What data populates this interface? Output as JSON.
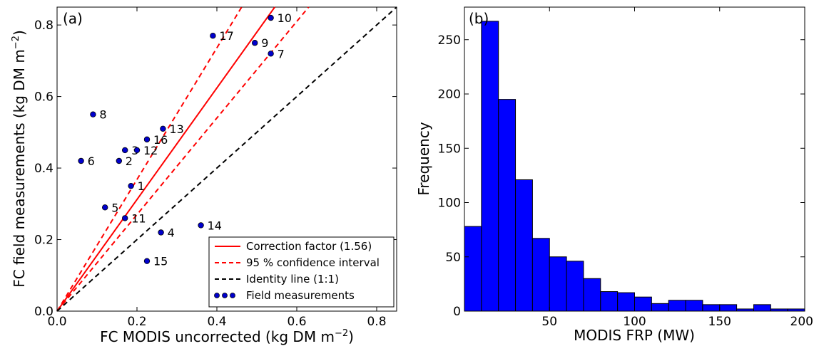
{
  "chart_data": [
    {
      "type": "scatter",
      "panel_label": "(a)",
      "xlabel": "FC MODIS uncorrected (kg DM m",
      "ylabel": "FC field measurements (kg DM m",
      "axis_unit_exponent": "−2",
      "axis_unit_close": ")",
      "xlim": [
        0,
        0.85
      ],
      "ylim": [
        0,
        0.85
      ],
      "xticks": [
        "0.0",
        "0.2",
        "0.4",
        "0.6",
        "0.8"
      ],
      "yticks": [
        "0.0",
        "0.2",
        "0.4",
        "0.6",
        "0.8"
      ],
      "xtick_values": [
        0,
        0.2,
        0.4,
        0.6,
        0.8
      ],
      "ytick_values": [
        0,
        0.2,
        0.4,
        0.6,
        0.8
      ],
      "grid": false,
      "legend_position": "lower-right",
      "points": [
        {
          "label": "1",
          "x": 0.185,
          "y": 0.35
        },
        {
          "label": "2",
          "x": 0.155,
          "y": 0.42
        },
        {
          "label": "3",
          "x": 0.17,
          "y": 0.45
        },
        {
          "label": "4",
          "x": 0.26,
          "y": 0.22
        },
        {
          "label": "5",
          "x": 0.12,
          "y": 0.29
        },
        {
          "label": "6",
          "x": 0.06,
          "y": 0.42
        },
        {
          "label": "7",
          "x": 0.535,
          "y": 0.72
        },
        {
          "label": "8",
          "x": 0.09,
          "y": 0.55
        },
        {
          "label": "9",
          "x": 0.495,
          "y": 0.75
        },
        {
          "label": "10",
          "x": 0.535,
          "y": 0.82
        },
        {
          "label": "11",
          "x": 0.17,
          "y": 0.26
        },
        {
          "label": "12",
          "x": 0.2,
          "y": 0.45
        },
        {
          "label": "13",
          "x": 0.265,
          "y": 0.51
        },
        {
          "label": "14",
          "x": 0.36,
          "y": 0.24
        },
        {
          "label": "15",
          "x": 0.225,
          "y": 0.14
        },
        {
          "label": "16",
          "x": 0.225,
          "y": 0.48
        },
        {
          "label": "17",
          "x": 0.39,
          "y": 0.77
        }
      ],
      "lines": [
        {
          "name": "Correction factor (1.56)",
          "slope": 1.56,
          "style": "solid",
          "color": "#ff0000"
        },
        {
          "name": "95 % confidence interval",
          "slope": 1.84,
          "style": "dashed",
          "color": "#ff0000"
        },
        {
          "name": "",
          "slope": 1.35,
          "style": "dashed",
          "color": "#ff0000"
        },
        {
          "name": "Identity line (1:1)",
          "slope": 1.0,
          "style": "dashed",
          "color": "#000000"
        }
      ],
      "scatter_legend": "Field measurements",
      "point_color": "#0000cc"
    },
    {
      "type": "bar",
      "panel_label": "(b)",
      "xlabel": "MODIS FRP (MW)",
      "ylabel": "Frequency",
      "xlim": [
        0,
        200
      ],
      "ylim": [
        0,
        280
      ],
      "xticks": [
        "50",
        "100",
        "150",
        "200"
      ],
      "yticks": [
        "0",
        "50",
        "100",
        "150",
        "200",
        "250"
      ],
      "xtick_values": [
        50,
        100,
        150,
        200
      ],
      "ytick_values": [
        0,
        50,
        100,
        150,
        200,
        250
      ],
      "bin_width": 10,
      "bin_starts": [
        0,
        10,
        20,
        30,
        40,
        50,
        60,
        70,
        80,
        90,
        100,
        110,
        120,
        130,
        140,
        150,
        160,
        170,
        180,
        190
      ],
      "values": [
        78,
        267,
        195,
        121,
        67,
        50,
        46,
        30,
        18,
        17,
        13,
        7,
        10,
        10,
        6,
        6,
        2,
        6,
        2,
        2
      ],
      "bar_color": "#0000ff",
      "grid": false
    }
  ]
}
